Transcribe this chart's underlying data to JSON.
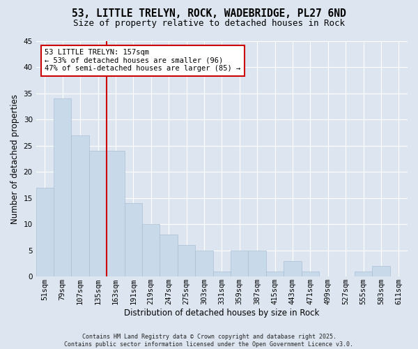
{
  "title": "53, LITTLE TRELYN, ROCK, WADEBRIDGE, PL27 6ND",
  "subtitle": "Size of property relative to detached houses in Rock",
  "xlabel": "Distribution of detached houses by size in Rock",
  "ylabel": "Number of detached properties",
  "categories": [
    "51sqm",
    "79sqm",
    "107sqm",
    "135sqm",
    "163sqm",
    "191sqm",
    "219sqm",
    "247sqm",
    "275sqm",
    "303sqm",
    "331sqm",
    "359sqm",
    "387sqm",
    "415sqm",
    "443sqm",
    "471sqm",
    "499sqm",
    "527sqm",
    "555sqm",
    "583sqm",
    "611sqm"
  ],
  "values": [
    17,
    34,
    27,
    24,
    24,
    14,
    10,
    8,
    6,
    5,
    1,
    5,
    5,
    1,
    3,
    1,
    0,
    0,
    1,
    2,
    0
  ],
  "bar_color": "#c8d9ea",
  "bar_edge_color": "#aabfd4",
  "vline_color": "#cc0000",
  "vline_index": 4,
  "ylim": [
    0,
    45
  ],
  "yticks": [
    0,
    5,
    10,
    15,
    20,
    25,
    30,
    35,
    40,
    45
  ],
  "bg_color": "#dde6f0",
  "grid_color": "#ffffff",
  "annotation_text": "53 LITTLE TRELYN: 157sqm\n← 53% of detached houses are smaller (96)\n47% of semi-detached houses are larger (85) →",
  "annotation_box_facecolor": "#ffffff",
  "annotation_box_edgecolor": "#cc0000",
  "title_fontsize": 10.5,
  "subtitle_fontsize": 9,
  "ylabel_fontsize": 8.5,
  "xlabel_fontsize": 8.5,
  "tick_fontsize": 7.5,
  "annotation_fontsize": 7.5,
  "footer1": "Contains HM Land Registry data © Crown copyright and database right 2025.",
  "footer2": "Contains public sector information licensed under the Open Government Licence v3.0.",
  "footer_fontsize": 6.0
}
